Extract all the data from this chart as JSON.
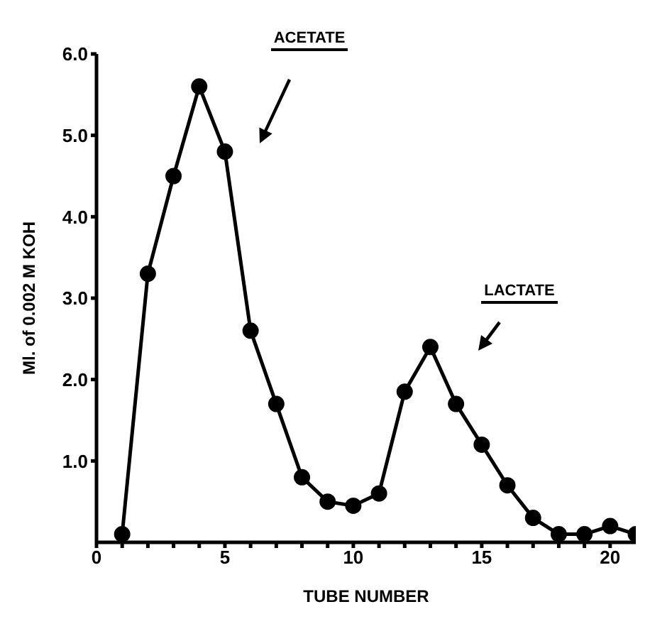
{
  "chart_data": {
    "type": "line",
    "xlabel": "TUBE NUMBER",
    "ylabel": "Ml. of 0.002 M KOH",
    "x": [
      1,
      2,
      3,
      4,
      5,
      6,
      7,
      8,
      9,
      10,
      11,
      12,
      13,
      14,
      15,
      16,
      17,
      18,
      19,
      20,
      21
    ],
    "series": [
      {
        "color": "#000000",
        "values": [
          0.1,
          3.3,
          4.5,
          5.6,
          4.8,
          2.6,
          1.7,
          0.8,
          0.5,
          0.45,
          0.6,
          1.85,
          2.4,
          1.7,
          1.2,
          0.7,
          0.3,
          0.1,
          0.1,
          0.2,
          0.1
        ]
      }
    ],
    "xlim": [
      0,
      21
    ],
    "ylim": [
      0,
      6
    ],
    "xticks": [
      0,
      {
        "value": 1,
        "label": null
      },
      {
        "value": 2,
        "label": null
      },
      {
        "value": 3,
        "label": null
      },
      {
        "value": 4,
        "label": null
      },
      5,
      {
        "value": 6,
        "label": null
      },
      {
        "value": 7,
        "label": null
      },
      {
        "value": 8,
        "label": null
      },
      {
        "value": 9,
        "label": null
      },
      10,
      {
        "value": 11,
        "label": null
      },
      {
        "value": 12,
        "label": null
      },
      {
        "value": 13,
        "label": null
      },
      {
        "value": 14,
        "label": null
      },
      15,
      {
        "value": 16,
        "label": null
      },
      {
        "value": 17,
        "label": null
      },
      {
        "value": 18,
        "label": null
      },
      {
        "value": 19,
        "label": null
      },
      20
    ],
    "yticks": [
      {
        "value": 1,
        "label": "1.0"
      },
      {
        "value": 2,
        "label": "2.0"
      },
      {
        "value": 3,
        "label": "3.0"
      },
      {
        "value": 4,
        "label": "4.0"
      },
      {
        "value": 5,
        "label": "5.0"
      },
      {
        "value": 6,
        "label": "6.0"
      }
    ],
    "annotations": [
      "ACETATE",
      "LACTATE"
    ],
    "marker": "circle",
    "line_style": "solid",
    "grid": false,
    "legend": false
  }
}
